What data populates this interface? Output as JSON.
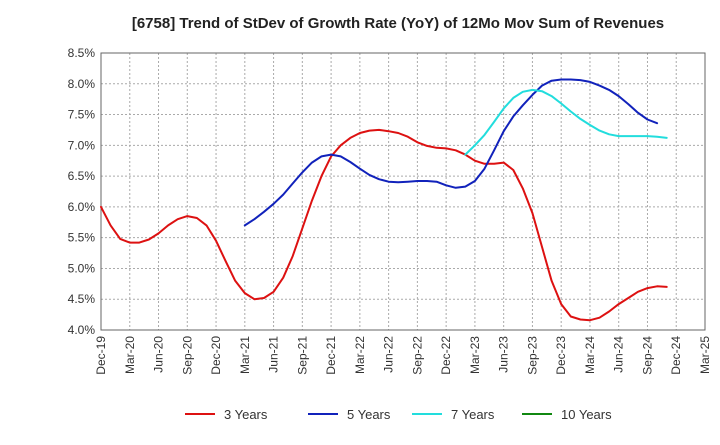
{
  "chart_data": {
    "type": "line",
    "title": "[6758]  Trend of StDev of Growth Rate (YoY) of 12Mo Mov Sum of Revenues",
    "xlabel": "",
    "ylabel": "",
    "ylim": [
      4.0,
      8.5
    ],
    "yticks": [
      4.0,
      4.5,
      5.0,
      5.5,
      6.0,
      6.5,
      7.0,
      7.5,
      8.0,
      8.5
    ],
    "ytick_labels": [
      "4.0%",
      "4.5%",
      "5.0%",
      "5.5%",
      "6.0%",
      "6.5%",
      "7.0%",
      "7.5%",
      "8.0%",
      "8.5%"
    ],
    "x_start": "Dec-19",
    "x_count": 64,
    "xtick_labels": [
      "Dec-19",
      "Mar-20",
      "Jun-20",
      "Sep-20",
      "Dec-20",
      "Mar-21",
      "Jun-21",
      "Sep-21",
      "Dec-21",
      "Mar-22",
      "Jun-22",
      "Sep-22",
      "Dec-22",
      "Mar-23",
      "Jun-23",
      "Sep-23",
      "Dec-23",
      "Mar-24",
      "Jun-24",
      "Sep-24",
      "Dec-24",
      "Mar-25"
    ],
    "grid": true,
    "legend_position": "bottom",
    "series": [
      {
        "name": "3 Years",
        "color": "#dd1111",
        "start_index": 0,
        "values": [
          6.0,
          5.7,
          5.48,
          5.42,
          5.42,
          5.47,
          5.57,
          5.7,
          5.8,
          5.85,
          5.82,
          5.7,
          5.45,
          5.12,
          4.8,
          4.6,
          4.5,
          4.52,
          4.62,
          4.85,
          5.2,
          5.65,
          6.1,
          6.5,
          6.82,
          7.0,
          7.12,
          7.2,
          7.24,
          7.25,
          7.23,
          7.2,
          7.14,
          7.05,
          6.99,
          6.96,
          6.95,
          6.92,
          6.85,
          6.75,
          6.7,
          6.7,
          6.72,
          6.6,
          6.3,
          5.9,
          5.35,
          4.8,
          4.42,
          4.22,
          4.17,
          4.16,
          4.2,
          4.3,
          4.42,
          4.52,
          4.62,
          4.68,
          4.71,
          4.7
        ]
      },
      {
        "name": "5 Years",
        "color": "#1122bb",
        "start_index": 15,
        "values": [
          5.7,
          5.8,
          5.92,
          6.05,
          6.2,
          6.38,
          6.56,
          6.72,
          6.82,
          6.85,
          6.82,
          6.73,
          6.62,
          6.52,
          6.45,
          6.41,
          6.4,
          6.41,
          6.42,
          6.42,
          6.41,
          6.35,
          6.31,
          6.33,
          6.42,
          6.62,
          6.92,
          7.23,
          7.47,
          7.65,
          7.82,
          7.97,
          8.05,
          8.07,
          8.07,
          8.06,
          8.03,
          7.97,
          7.9,
          7.8,
          7.67,
          7.53,
          7.42,
          7.36
        ]
      },
      {
        "name": "7 Years",
        "color": "#22dddd",
        "start_index": 38,
        "values": [
          6.85,
          7.0,
          7.17,
          7.38,
          7.6,
          7.77,
          7.87,
          7.9,
          7.88,
          7.8,
          7.68,
          7.55,
          7.43,
          7.33,
          7.24,
          7.18,
          7.15,
          7.15,
          7.15,
          7.15,
          7.14,
          7.12
        ]
      },
      {
        "name": "10 Years",
        "color": "#118811",
        "start_index": 0,
        "values": []
      }
    ]
  }
}
